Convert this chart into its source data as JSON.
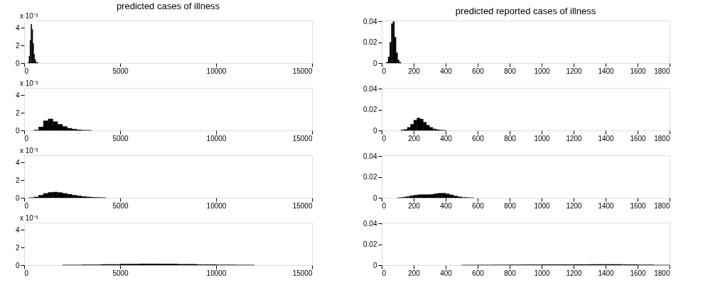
{
  "chart_data": [
    {
      "type": "histogram",
      "title": "predicted cases of illness",
      "annotations": [
        "x 10⁻³"
      ],
      "color": "#000000",
      "xlim": [
        0,
        15000
      ],
      "xticks": [
        0,
        5000,
        10000,
        15000
      ],
      "ylim": [
        0,
        4.8
      ],
      "yticks": [
        0,
        2,
        4
      ],
      "bins": [
        200,
        250,
        300,
        350,
        400,
        450,
        500,
        550,
        600,
        650,
        700,
        750
      ],
      "values": [
        0.1,
        0.8,
        2.6,
        4.4,
        3.8,
        2.2,
        1.0,
        0.4,
        0.15,
        0.05,
        0.02
      ]
    },
    {
      "type": "histogram",
      "title": "predicted reported cases of illness",
      "color": "#000000",
      "xlim": [
        0,
        1800
      ],
      "xticks": [
        0,
        200,
        400,
        600,
        800,
        1000,
        1200,
        1400,
        1600,
        1800
      ],
      "ylim": [
        0,
        0.041
      ],
      "yticks": [
        0,
        0.02,
        0.04
      ],
      "bins": [
        30,
        40,
        50,
        60,
        70,
        80,
        90,
        100,
        110,
        120
      ],
      "values": [
        0.001,
        0.006,
        0.02,
        0.038,
        0.04,
        0.025,
        0.01,
        0.003,
        0.001
      ]
    },
    {
      "type": "histogram",
      "annotations": [
        "x 10⁻³"
      ],
      "color": "#000000",
      "xlim": [
        0,
        15000
      ],
      "xticks": [
        0,
        5000,
        10000,
        15000
      ],
      "ylim": [
        0,
        4.8
      ],
      "yticks": [
        0,
        2,
        4
      ],
      "bins": [
        500,
        750,
        1000,
        1250,
        1500,
        1750,
        2000,
        2250,
        2500,
        2750,
        3000,
        3250,
        3500
      ],
      "values": [
        0.05,
        0.4,
        1.1,
        1.3,
        1.0,
        0.7,
        0.45,
        0.25,
        0.15,
        0.08,
        0.04,
        0.02
      ]
    },
    {
      "type": "histogram",
      "color": "#000000",
      "xlim": [
        0,
        1800
      ],
      "xticks": [
        0,
        200,
        400,
        600,
        800,
        1000,
        1200,
        1400,
        1600,
        1800
      ],
      "ylim": [
        0,
        0.041
      ],
      "yticks": [
        0,
        0.02,
        0.04
      ],
      "bins": [
        120,
        140,
        160,
        180,
        200,
        220,
        240,
        260,
        280,
        300,
        320,
        340,
        360,
        380,
        400
      ],
      "values": [
        0.0005,
        0.001,
        0.003,
        0.006,
        0.01,
        0.012,
        0.011,
        0.008,
        0.005,
        0.003,
        0.0015,
        0.0008,
        0.0004,
        0.0002
      ]
    },
    {
      "type": "histogram",
      "annotations": [
        "x 10⁻³"
      ],
      "color": "#000000",
      "xlim": [
        0,
        15000
      ],
      "xticks": [
        0,
        5000,
        10000,
        15000
      ],
      "ylim": [
        0,
        4.8
      ],
      "yticks": [
        0,
        2,
        4
      ],
      "bins": [
        250,
        500,
        750,
        1000,
        1250,
        1500,
        1750,
        2000,
        2250,
        2500,
        2750,
        3000,
        3250,
        3500,
        3750,
        4000,
        4250,
        4500
      ],
      "values": [
        0.02,
        0.1,
        0.3,
        0.5,
        0.62,
        0.65,
        0.6,
        0.5,
        0.4,
        0.3,
        0.22,
        0.15,
        0.1,
        0.06,
        0.04,
        0.02,
        null
      ]
    },
    {
      "type": "histogram",
      "color": "#000000",
      "xlim": [
        0,
        1800
      ],
      "xticks": [
        0,
        200,
        400,
        600,
        800,
        1000,
        1200,
        1400,
        1600,
        1800
      ],
      "ylim": [
        0,
        0.041
      ],
      "yticks": [
        0,
        0.02,
        0.04
      ],
      "bins": [
        100,
        125,
        150,
        175,
        200,
        225,
        250,
        275,
        300,
        325,
        350,
        375,
        400,
        425,
        450,
        475,
        500,
        525,
        550,
        575
      ],
      "values": [
        0.0002,
        0.0006,
        0.0012,
        0.002,
        0.0026,
        0.003,
        0.0031,
        0.0031,
        0.0033,
        0.0039,
        0.0044,
        0.0045,
        0.0038,
        0.0028,
        0.0018,
        0.001,
        0.0005,
        0.0002,
        0.0001
      ]
    },
    {
      "type": "histogram",
      "annotations": [
        "x 10⁻³"
      ],
      "color": "#000000",
      "xlim": [
        0,
        15000
      ],
      "xticks": [
        0,
        5000,
        10000,
        15000
      ],
      "ylim": [
        0,
        4.8
      ],
      "yticks": [
        0,
        2,
        4
      ],
      "bins": [
        2000,
        3000,
        4000,
        5000,
        6000,
        7000,
        8000,
        9000,
        10000,
        11000,
        12000,
        13000
      ],
      "values": [
        0.02,
        0.05,
        0.09,
        0.13,
        0.15,
        0.14,
        0.11,
        0.07,
        0.04,
        0.02,
        null
      ]
    },
    {
      "type": "histogram",
      "color": "#000000",
      "xlim": [
        0,
        1800
      ],
      "xticks": [
        0,
        200,
        400,
        600,
        800,
        1000,
        1200,
        1400,
        1600,
        1800
      ],
      "ylim": [
        0,
        0.041
      ],
      "yticks": [
        0,
        0.02,
        0.04
      ],
      "bins": [
        500,
        600,
        700,
        800,
        900,
        1000,
        1100,
        1200,
        1300,
        1400,
        1500,
        1600,
        1700,
        1800
      ],
      "values": [
        0.0001,
        0.0002,
        0.0003,
        0.0004,
        0.0005,
        0.0006,
        0.0006,
        0.0007,
        0.0008,
        0.0008,
        0.0006,
        0.0004,
        0.0001
      ]
    }
  ]
}
